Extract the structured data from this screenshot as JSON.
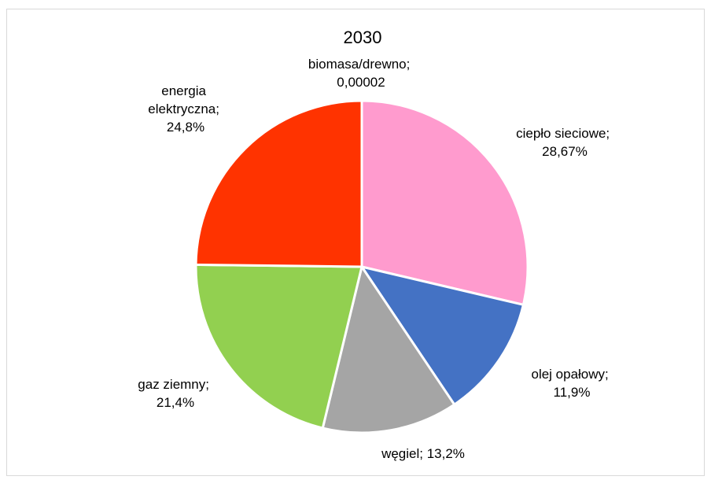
{
  "chart_data": {
    "type": "pie",
    "title": "2030",
    "legend": "none",
    "slices": [
      {
        "name": "biomasa/drewno",
        "value": 2e-05,
        "label_lines": [
          "biomasa/drewno;",
          "0,00002"
        ],
        "color": "#FFFFFF"
      },
      {
        "name": "ciepło sieciowe",
        "value": 28.67,
        "label_lines": [
          "ciepło sieciowe;",
          "28,67%"
        ],
        "color": "#FF9BCE"
      },
      {
        "name": "olej opałowy",
        "value": 11.9,
        "label_lines": [
          "olej opałowy;",
          "11,9%"
        ],
        "color": "#4472C4"
      },
      {
        "name": "węgiel",
        "value": 13.2,
        "label_lines": [
          "węgiel; 13,2%"
        ],
        "color": "#A5A5A5"
      },
      {
        "name": "gaz ziemny",
        "value": 21.4,
        "label_lines": [
          "gaz ziemny;",
          "21,4%"
        ],
        "color": "#92D050"
      },
      {
        "name": "energia elektryczna",
        "value": 24.8,
        "label_lines": [
          "energia",
          "elektryczna;",
          "24,8%"
        ],
        "color": "#FF3300"
      }
    ]
  }
}
